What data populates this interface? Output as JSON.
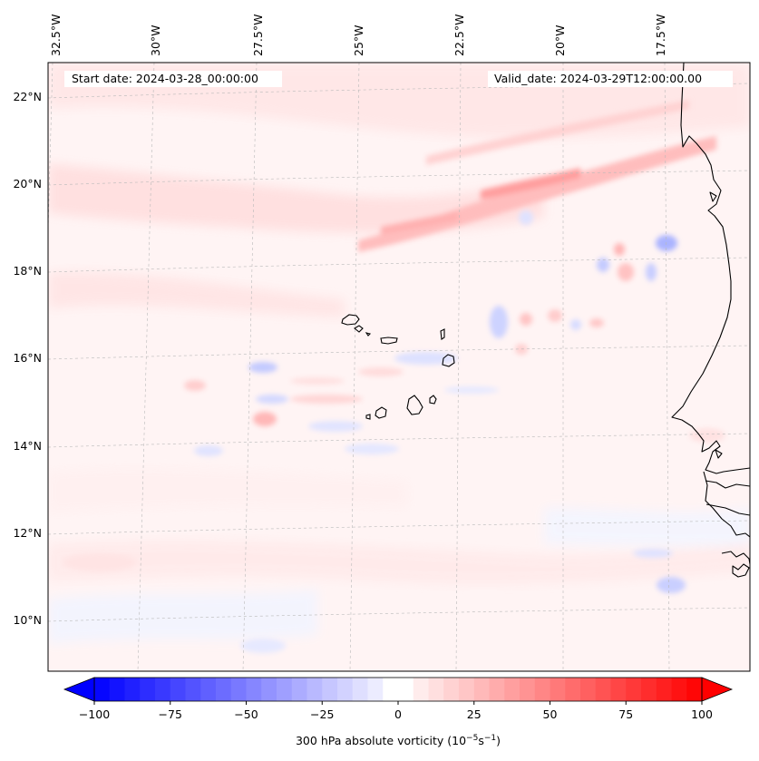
{
  "header": {
    "start_date": "Start date: 2024-03-28_00:00:00",
    "valid_date": "Valid_date: 2024-03-29T12:00:00.00"
  },
  "longitude_labels": [
    "32.5°W",
    "30°W",
    "27.5°W",
    "25°W",
    "22.5°W",
    "20°W",
    "17.5°W"
  ],
  "latitude_labels": [
    "22°N",
    "20°N",
    "18°N",
    "16°N",
    "14°N",
    "12°N",
    "10°N"
  ],
  "colorbar": {
    "ticks": [
      "−100",
      "−75",
      "−50",
      "−25",
      "0",
      "25",
      "50",
      "75",
      "100"
    ],
    "label": "300 hPa absolute vorticity (10",
    "label_exp1": "−5",
    "label_mid": "s",
    "label_exp2": "−1",
    "label_end": ")",
    "range": [
      -100,
      100
    ],
    "min_color": "#0000ff",
    "max_color": "#ff0000",
    "extend": "both"
  },
  "colors": {
    "background_tint": "#fff3f3",
    "coastline": "#000000",
    "gridline": "#b9b9b9"
  }
}
